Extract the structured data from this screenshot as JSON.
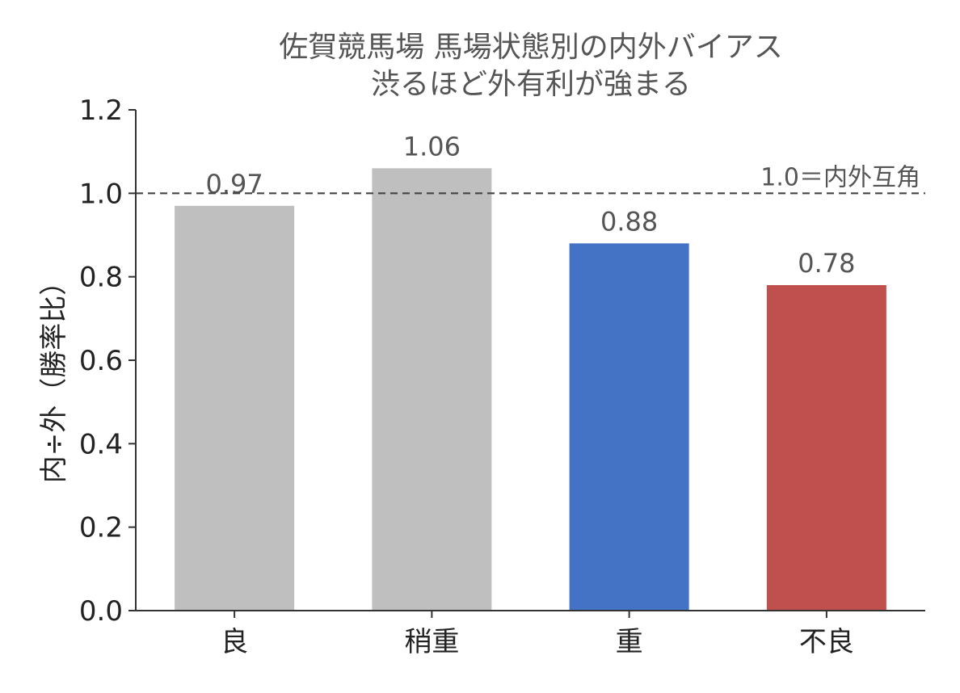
{
  "chart_data": {
    "type": "bar",
    "title": "佐賀競馬場 馬場状態別の内外バイアス",
    "subtitle": "渋るほど外有利が強まる",
    "xlabel": "",
    "ylabel": "内÷外（勝率比）",
    "categories": [
      "良",
      "稍重",
      "重",
      "不良"
    ],
    "values": [
      0.97,
      1.06,
      0.88,
      0.78
    ],
    "value_labels": [
      "0.97",
      "1.06",
      "0.88",
      "0.78"
    ],
    "colors": [
      "#bfbfbf",
      "#bfbfbf",
      "#4472c4",
      "#c0504d"
    ],
    "ylim": [
      0,
      1.2
    ],
    "yticks": [
      0.0,
      0.2,
      0.4,
      0.6,
      0.8,
      1.0,
      1.2
    ],
    "ytick_labels": [
      "0.0",
      "0.2",
      "0.4",
      "0.6",
      "0.8",
      "1.0",
      "1.2"
    ],
    "reference_line": {
      "value": 1.0,
      "label": "1.0＝内外互角",
      "style": "dashed"
    },
    "grid": false
  }
}
